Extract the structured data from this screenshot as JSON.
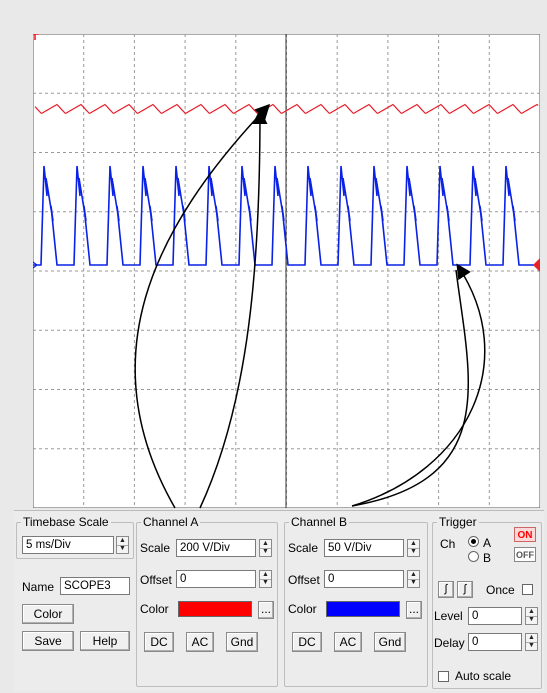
{
  "colors": {
    "screen_bg": "#ffffff",
    "grid": "#9a9a9a",
    "channel_a_trace": "#e8202a",
    "channel_b_trace": "#0a22e6",
    "channel_a_swatch": "#ff0000",
    "channel_b_swatch": "#0000ff",
    "trigger_on": "#ff0000",
    "arrow": "#000000"
  },
  "markers": {
    "trigger_marker": "trigger-marker-icon",
    "channel_b_ground_marker": "channel-b-ground-marker-icon"
  },
  "timebase": {
    "title": "Timebase Scale",
    "scale_value": "5 ms/Div"
  },
  "name_field": {
    "label": "Name",
    "value": "SCOPE3"
  },
  "buttons": {
    "color": "Color",
    "save": "Save",
    "help": "Help"
  },
  "channel_a": {
    "title": "Channel A",
    "scale_label": "Scale",
    "scale_value": "200  V/Div",
    "offset_label": "Offset",
    "offset_value": "0",
    "color_label": "Color",
    "more_label": "...",
    "dc": "DC",
    "ac": "AC",
    "gnd": "Gnd"
  },
  "channel_b": {
    "title": "Channel B",
    "scale_label": "Scale",
    "scale_value": "50  V/Div",
    "offset_label": "Offset",
    "offset_value": "0",
    "color_label": "Color",
    "more_label": "...",
    "dc": "DC",
    "ac": "AC",
    "gnd": "Gnd"
  },
  "trigger": {
    "title": "Trigger",
    "ch_label": "Ch",
    "option_a": "A",
    "option_b": "B",
    "selected": "A",
    "on_label": "ON",
    "off_label": "OFF",
    "once_label": "Once",
    "level_label": "Level",
    "level_value": "0",
    "delay_label": "Delay",
    "delay_value": "0",
    "auto_scale_label": "Auto scale"
  }
}
